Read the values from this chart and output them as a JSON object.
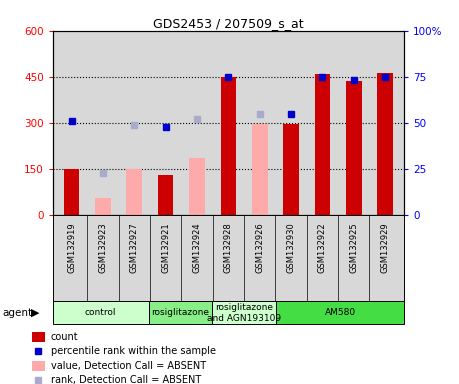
{
  "title": "GDS2453 / 207509_s_at",
  "samples": [
    "GSM132919",
    "GSM132923",
    "GSM132927",
    "GSM132921",
    "GSM132924",
    "GSM132928",
    "GSM132926",
    "GSM132930",
    "GSM132922",
    "GSM132925",
    "GSM132929"
  ],
  "bar_values": [
    150,
    null,
    null,
    130,
    null,
    450,
    null,
    295,
    460,
    435,
    462
  ],
  "bar_values_absent": [
    null,
    55,
    150,
    null,
    185,
    null,
    295,
    null,
    null,
    null,
    null
  ],
  "rank_present": [
    51,
    null,
    null,
    48,
    null,
    75,
    null,
    55,
    75,
    73,
    75
  ],
  "rank_absent": [
    null,
    23,
    49,
    null,
    52,
    null,
    55,
    null,
    null,
    null,
    null
  ],
  "groups": [
    {
      "label": "control",
      "start": 0,
      "end": 3,
      "color": "#ccffcc"
    },
    {
      "label": "rosiglitazone",
      "start": 3,
      "end": 5,
      "color": "#88ee88"
    },
    {
      "label": "rosiglitazone\nand AGN193109",
      "start": 5,
      "end": 7,
      "color": "#ccffcc"
    },
    {
      "label": "AM580",
      "start": 7,
      "end": 11,
      "color": "#44dd44"
    }
  ],
  "ylim_left": [
    0,
    600
  ],
  "ylim_right": [
    0,
    100
  ],
  "yticks_left": [
    0,
    150,
    300,
    450,
    600
  ],
  "yticks_right": [
    0,
    25,
    50,
    75,
    100
  ],
  "bar_color_present": "#cc0000",
  "bar_color_absent": "#ffaaaa",
  "dot_color_present": "#0000cc",
  "dot_color_absent": "#aaaacc",
  "bg_color": "#d8d8d8",
  "bar_width": 0.5
}
